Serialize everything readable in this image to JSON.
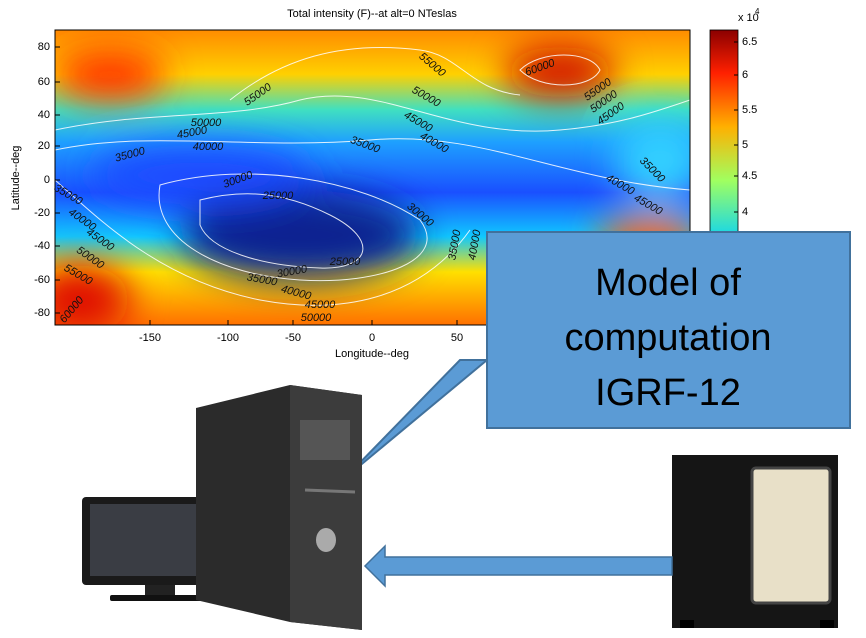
{
  "plot": {
    "title": "Total intensity (F)--at alt=0 NTeslas",
    "xlabel": "Longitude--deg",
    "ylabel": "Latitude--deg",
    "xticks": [
      "-150",
      "-100",
      "-50",
      "0",
      "50"
    ],
    "yticks": [
      "80",
      "60",
      "40",
      "20",
      "0",
      "-20",
      "-40",
      "-60",
      "-80"
    ],
    "colorbar": {
      "base": "x 10",
      "exponent": "4",
      "ticks": [
        "6.5",
        "6",
        "5.5",
        "5",
        "4.5",
        "4"
      ]
    },
    "contour_labels": [
      "55000",
      "55000",
      "60000",
      "50000",
      "55000",
      "50000",
      "45000",
      "50000",
      "45000",
      "40000",
      "45000",
      "40000",
      "35000",
      "35000",
      "35000",
      "30000",
      "25000",
      "30000",
      "40000",
      "45000",
      "35000",
      "40000",
      "45000",
      "50000",
      "55000",
      "60000",
      "25000",
      "35000",
      "40000",
      "30000",
      "35000",
      "40000",
      "45000",
      "50000"
    ]
  },
  "callout": {
    "lines": [
      "Model of",
      "computation",
      "IGRF-12"
    ]
  }
}
